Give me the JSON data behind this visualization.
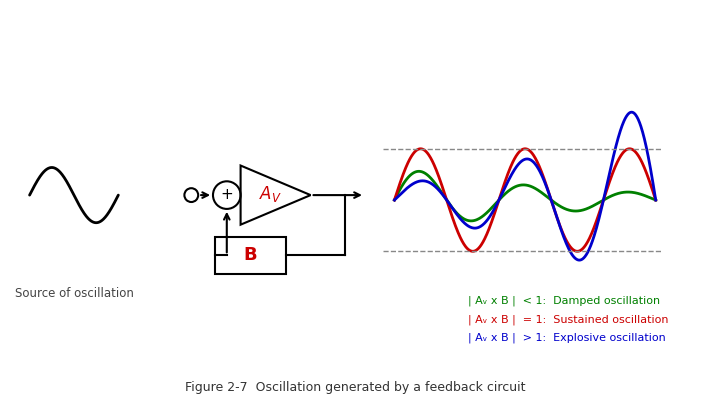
{
  "bg_color": "#ffffff",
  "title": "Figure 2-7  Oscillation generated by a feedback circuit",
  "source_label": "Source of oscillation",
  "legend_lines": [
    {
      "text": "| Aᵥ x B |  < 1:  Damped oscillation",
      "color": "#008000"
    },
    {
      "text": "| Aᵥ x B |  = 1:  Sustained oscillation",
      "color": "#cc0000"
    },
    {
      "text": "| Aᵥ x B |  > 1:  Explosive oscillation",
      "color": "#0000cc"
    }
  ],
  "wave_color_damped": "#008000",
  "wave_color_sustained": "#cc0000",
  "wave_color_explosive": "#0000cc",
  "av_label_color": "#cc0000",
  "b_label_color": "#cc0000",
  "dashed_line_color": "#888888",
  "circuit_color": "#000000"
}
